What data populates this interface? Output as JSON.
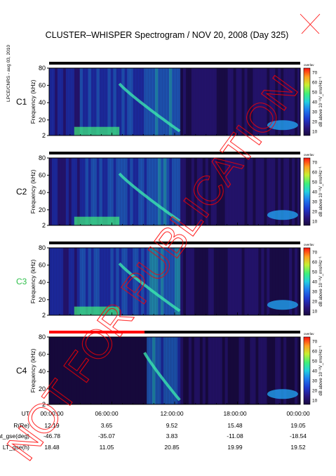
{
  "title": "CLUSTER–WHISPER Spectrogram / NOV 20, 2008 (Day 325)",
  "side_note": "LPCE/CNRS - aug 03, 2010",
  "watermark": "NOT FOR PUBLICATION",
  "colors": {
    "panel_bg": "#1a0f4a",
    "status_on": "#000000",
    "status_warn": "#ff0000",
    "watermark": "#ff0000"
  },
  "panels": [
    {
      "label": "C1",
      "label_color": "#000000",
      "ylabel": "Frequency (kHz)",
      "status_color": "#000000"
    },
    {
      "label": "C2",
      "label_color": "#000000",
      "ylabel": "Frequency (kHz)",
      "status_color": "#000000"
    },
    {
      "label": "C3",
      "label_color": "#2dbf4a",
      "ylabel": "Frequency (kHz)",
      "status_color": "#000000"
    },
    {
      "label": "C4",
      "label_color": "#000000",
      "ylabel": "Frequency (kHz)",
      "status_color": "#ff0000"
    }
  ],
  "colorbar": {
    "label": "dB above 10⁻⁸V_rms²Hz⁻¹",
    "small_label": "overlav",
    "ticks": [
      "70",
      "60",
      "50",
      "40",
      "30",
      "20",
      "10"
    ]
  },
  "ephemeris": {
    "rows": [
      {
        "label": "UT",
        "values": [
          "00:00:00",
          "06:00:00",
          "12:00:00",
          "18:00:00",
          "00:00:00"
        ]
      },
      {
        "label": "R(Re)",
        "values": [
          "12.19",
          "3.65",
          "9.52",
          "15.48",
          "19.05"
        ]
      },
      {
        "label": "Lat_gse(deg)",
        "values": [
          "-46.78",
          "-35.07",
          "3.83",
          "-11.08",
          "-18.54"
        ]
      },
      {
        "label": "LT_gse(h)",
        "values": [
          "18.48",
          "11.05",
          "20.85",
          "19.99",
          "19.52"
        ]
      }
    ]
  },
  "chart_data": {
    "type": "heatmap",
    "title": "CLUSTER–WHISPER Spectrogram / NOV 20, 2008 (Day 325)",
    "xlabel": "UT",
    "ylabel": "Frequency (kHz)",
    "x_ticks": [
      "00:00:00",
      "06:00:00",
      "12:00:00",
      "18:00:00",
      "00:00:00"
    ],
    "y_ticks": [
      2,
      20,
      40,
      60,
      80
    ],
    "ylim": [
      2,
      80
    ],
    "zlabel": "dB above 10⁻⁸V_rms²Hz⁻¹",
    "zlim": [
      10,
      70
    ],
    "series": [
      {
        "name": "C1"
      },
      {
        "name": "C2"
      },
      {
        "name": "C3"
      },
      {
        "name": "C4"
      }
    ]
  }
}
